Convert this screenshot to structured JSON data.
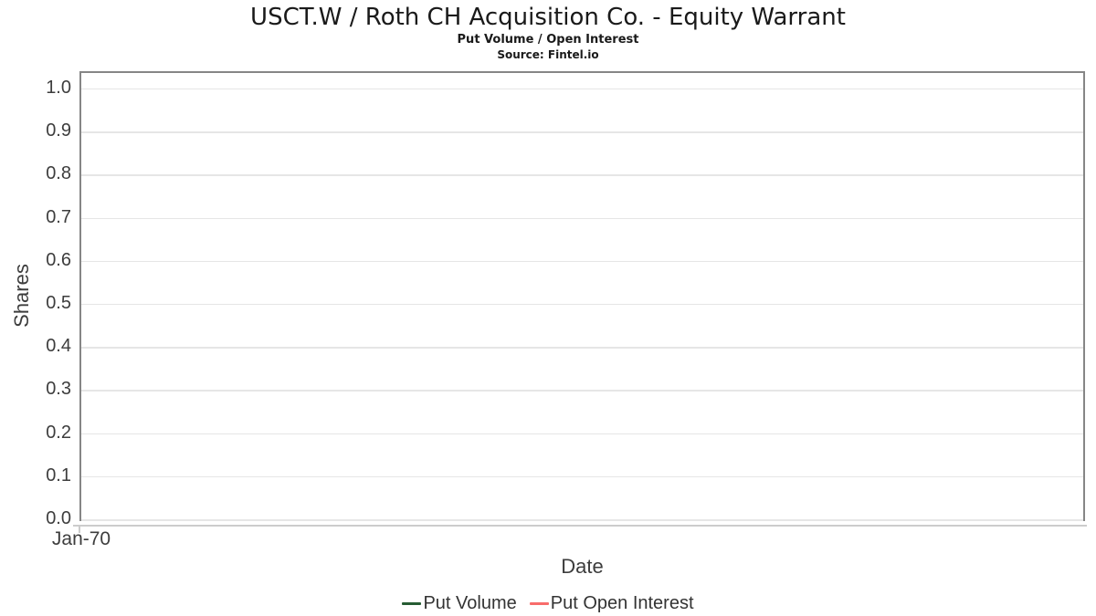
{
  "chart_data": {
    "type": "line",
    "title": "USCT.W / Roth CH Acquisition Co. - Equity Warrant",
    "subtitle": "Put Volume / Open Interest",
    "source": "Source: Fintel.io",
    "xlabel": "Date",
    "ylabel": "Shares",
    "xticks": [
      "Jan-70"
    ],
    "yticks": [
      0,
      0.1,
      0.2,
      0.3,
      0.4,
      0.5,
      0.6,
      0.7,
      0.8,
      0.9,
      1.0
    ],
    "ytick_format_decimals": 1,
    "ylim": [
      0,
      1.036
    ],
    "grid": "horizontal",
    "legend_position": "bottom",
    "plot_is_empty": true,
    "series": [
      {
        "name": "Put Volume",
        "color": "#265c33",
        "values": []
      },
      {
        "name": "Put Open Interest",
        "color": "#f86c6b",
        "values": []
      }
    ],
    "colors": {
      "grid": "#e6e6e6",
      "plot_border": "#868686",
      "axis_line": "#cccccc",
      "title_text": "#1a1a1a",
      "axis_text": "#3d3d3d",
      "legend_text": "#333333"
    }
  }
}
